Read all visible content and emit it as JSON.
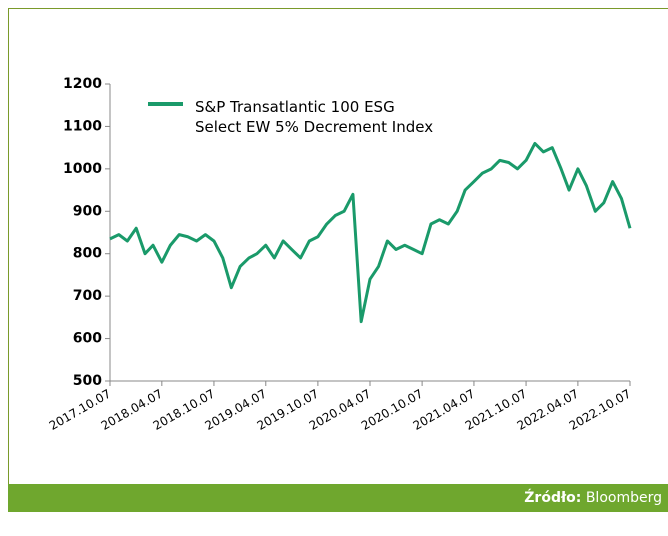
{
  "chart_data": {
    "type": "line",
    "series": [
      {
        "name": "S&P Transatlantic 100 ESG Select EW 5% Decrement Index",
        "color": "#1a9a6a",
        "values": [
          835,
          845,
          830,
          860,
          800,
          820,
          780,
          820,
          845,
          840,
          830,
          845,
          830,
          790,
          720,
          770,
          790,
          800,
          820,
          790,
          830,
          810,
          790,
          830,
          840,
          870,
          890,
          900,
          940,
          640,
          740,
          770,
          830,
          810,
          820,
          810,
          800,
          870,
          880,
          870,
          900,
          950,
          970,
          990,
          1000,
          1020,
          1015,
          1000,
          1020,
          1060,
          1040,
          1050,
          1000,
          950,
          1000,
          960,
          900,
          920,
          970,
          930,
          860
        ]
      }
    ],
    "x": [
      "2017.10.07",
      "2017.11.07",
      "2017.12.07",
      "2018.01.07",
      "2018.02.07",
      "2018.03.07",
      "2018.04.07",
      "2018.05.07",
      "2018.06.07",
      "2018.07.07",
      "2018.08.07",
      "2018.09.07",
      "2018.10.07",
      "2018.11.07",
      "2018.12.07",
      "2019.01.07",
      "2019.02.07",
      "2019.03.07",
      "2019.04.07",
      "2019.05.07",
      "2019.06.07",
      "2019.07.07",
      "2019.08.07",
      "2019.09.07",
      "2019.10.07",
      "2019.11.07",
      "2019.12.07",
      "2020.01.07",
      "2020.02.07",
      "2020.03.07",
      "2020.04.07",
      "2020.05.07",
      "2020.06.07",
      "2020.07.07",
      "2020.08.07",
      "2020.09.07",
      "2020.10.07",
      "2020.11.07",
      "2020.12.07",
      "2021.01.07",
      "2021.02.07",
      "2021.03.07",
      "2021.04.07",
      "2021.05.07",
      "2021.06.07",
      "2021.07.07",
      "2021.08.07",
      "2021.09.07",
      "2021.10.07",
      "2021.11.07",
      "2021.12.07",
      "2022.01.07",
      "2022.02.07",
      "2022.03.07",
      "2022.04.07",
      "2022.05.07",
      "2022.06.07",
      "2022.07.07",
      "2022.08.07",
      "2022.09.07",
      "2022.10.07"
    ],
    "xlim": [
      "2017.10.07",
      "2022.10.07"
    ],
    "xticks": [
      "2017.10.07",
      "2018.04.07",
      "2018.10.07",
      "2019.04.07",
      "2019.10.07",
      "2020.04.07",
      "2020.10.07",
      "2021.04.07",
      "2021.10.07",
      "2022.04.07",
      "2022.10.07"
    ],
    "ylim": [
      500,
      1200
    ],
    "yticks": [
      500,
      600,
      700,
      800,
      900,
      1000,
      1100,
      1200
    ],
    "source_label": "Źródło:",
    "source": "Bloomberg"
  }
}
